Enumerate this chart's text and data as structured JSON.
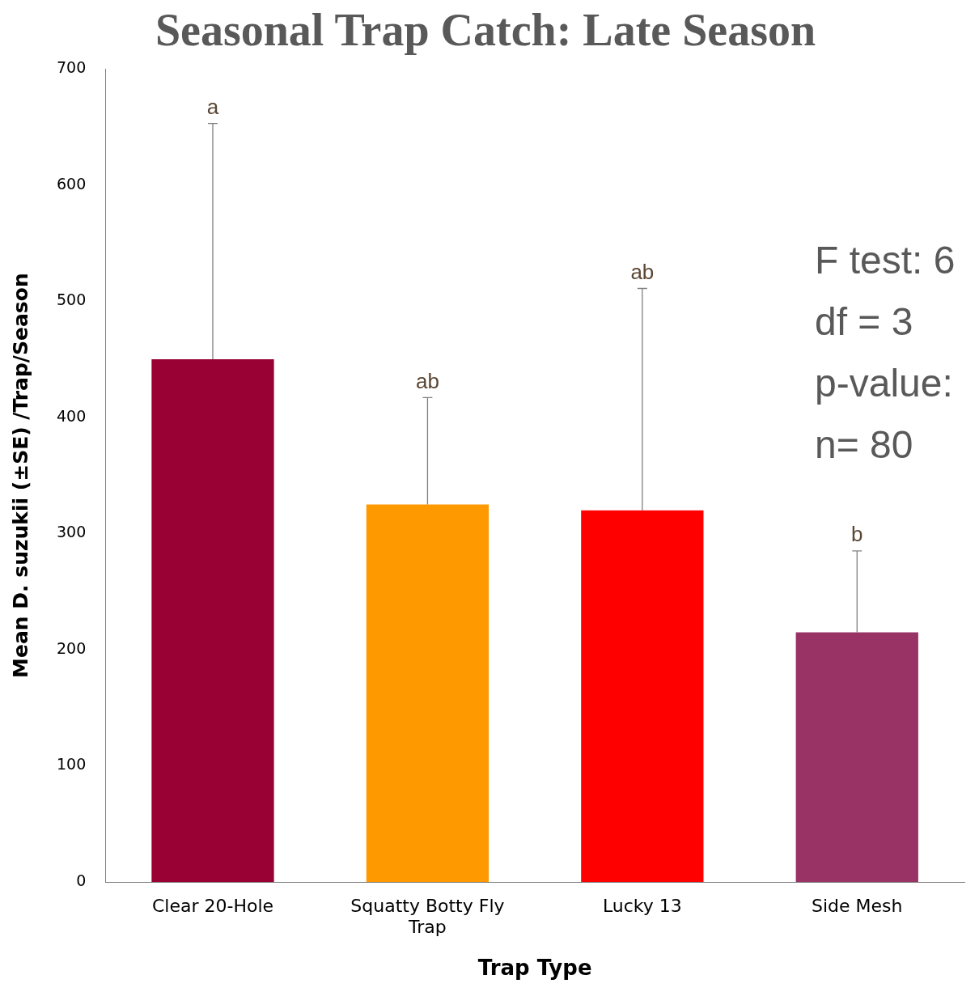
{
  "chart_data": {
    "type": "bar",
    "title": "Seasonal Trap Catch: Late Season",
    "xlabel": "Trap Type",
    "ylabel": "Mean D. suzukii (±SE) /Trap/Season",
    "categories": [
      "Clear 20-Hole",
      "Squatty Botty Fly Trap",
      "Lucky 13",
      "Side Mesh"
    ],
    "values": [
      450,
      325,
      320,
      215
    ],
    "colors": [
      "#990033",
      "#ff9900",
      "#ff0000",
      "#993366"
    ],
    "errors": [
      [
        450,
        653
      ],
      [
        325,
        417
      ],
      [
        320,
        511
      ],
      [
        215,
        285
      ]
    ],
    "ylim": [
      0,
      700
    ],
    "yticks": [
      0,
      100,
      200,
      300,
      400,
      500,
      600,
      700
    ],
    "grid": false,
    "annotations": [
      {
        "text": "a",
        "x": "Clear 20-Hole",
        "y": 653
      },
      {
        "text": "ab",
        "x": "Squatty Botty Fly Trap",
        "y": 417
      },
      {
        "text": "ab",
        "x": "Lucky 13",
        "y": 511
      },
      {
        "text": "b",
        "x": "Side Mesh",
        "y": 285
      },
      "F test: 6",
      "df = 3",
      "p-value:",
      "n= 80"
    ]
  }
}
